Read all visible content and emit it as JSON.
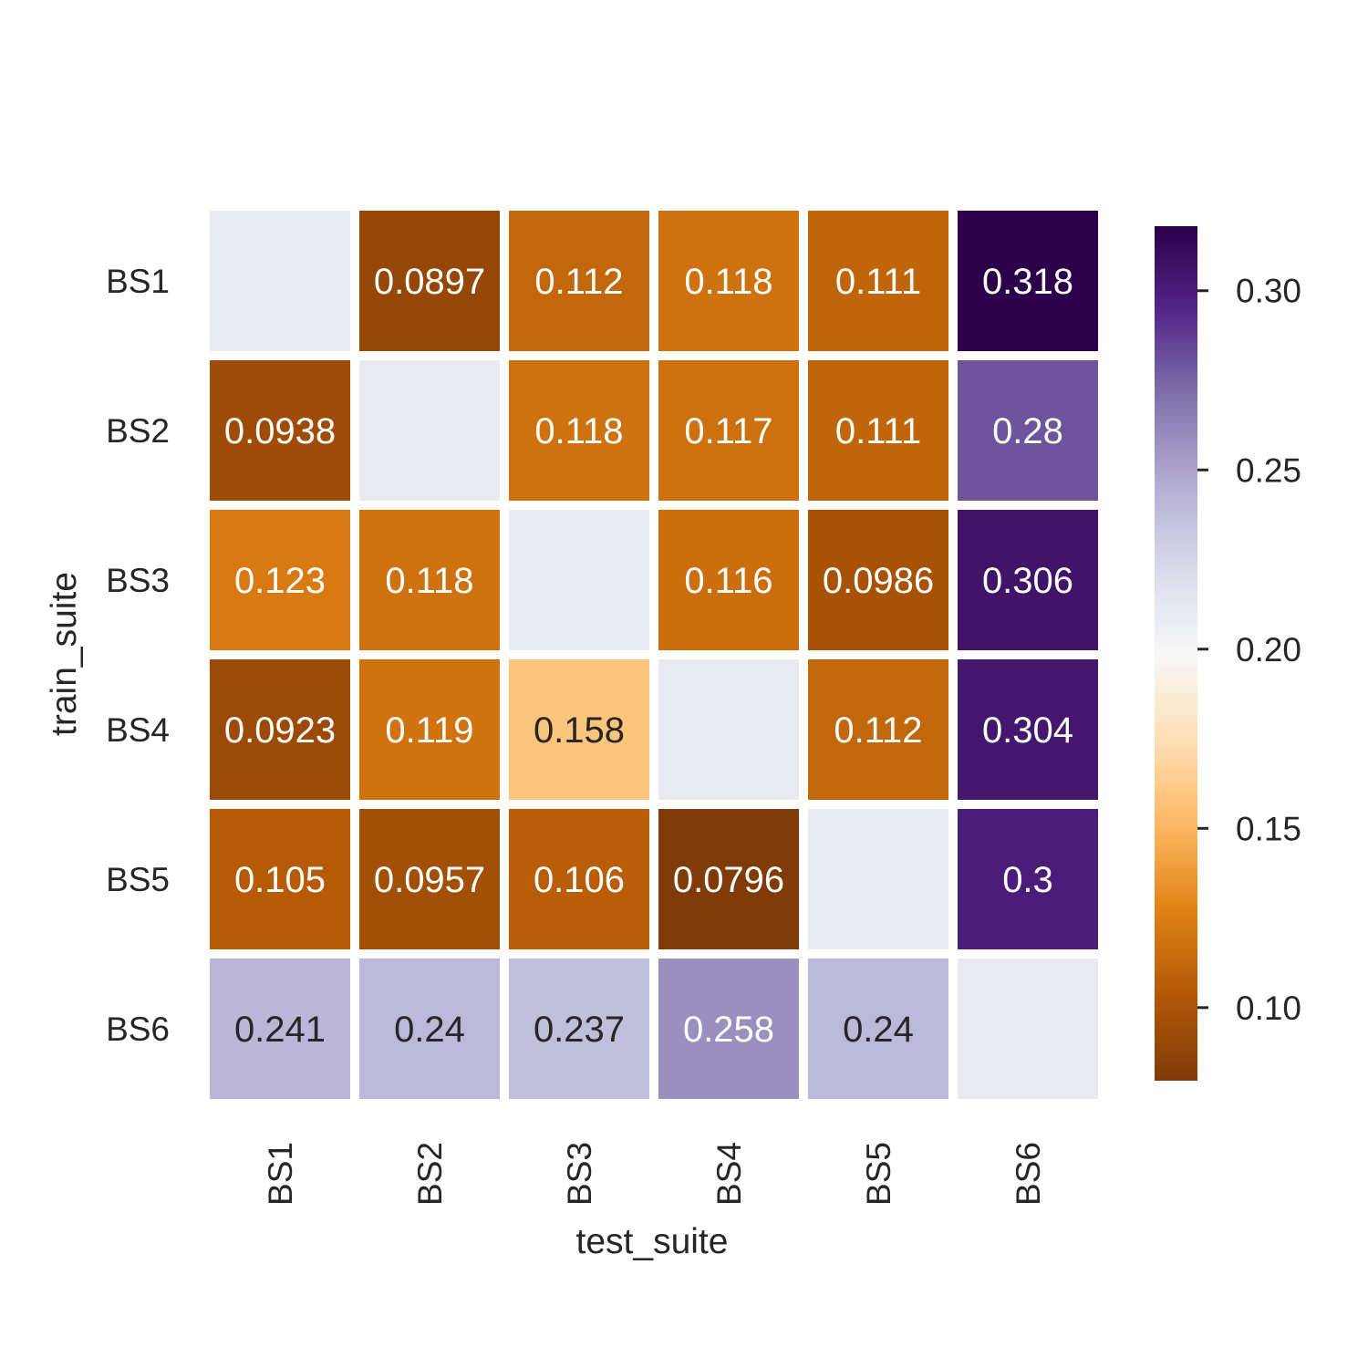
{
  "chart_data": {
    "type": "heatmap",
    "xlabel": "test_suite",
    "ylabel": "train_suite",
    "x_categories": [
      "BS1",
      "BS2",
      "BS3",
      "BS4",
      "BS5",
      "BS6"
    ],
    "y_categories": [
      "BS1",
      "BS2",
      "BS3",
      "BS4",
      "BS5",
      "BS6"
    ],
    "values": [
      [
        null,
        0.0897,
        0.112,
        0.118,
        0.111,
        0.318
      ],
      [
        0.0938,
        null,
        0.118,
        0.117,
        0.111,
        0.28
      ],
      [
        0.123,
        0.118,
        null,
        0.116,
        0.0986,
        0.306
      ],
      [
        0.0923,
        0.119,
        0.158,
        null,
        0.112,
        0.304
      ],
      [
        0.105,
        0.0957,
        0.106,
        0.0796,
        null,
        0.3
      ],
      [
        0.241,
        0.24,
        0.237,
        0.258,
        0.24,
        null
      ]
    ],
    "cell_labels": [
      [
        "",
        "0.0897",
        "0.112",
        "0.118",
        "0.111",
        "0.318"
      ],
      [
        "0.0938",
        "",
        "0.118",
        "0.117",
        "0.111",
        "0.28"
      ],
      [
        "0.123",
        "0.118",
        "",
        "0.116",
        "0.0986",
        "0.306"
      ],
      [
        "0.0923",
        "0.119",
        "0.158",
        "",
        "0.112",
        "0.304"
      ],
      [
        "0.105",
        "0.0957",
        "0.106",
        "0.0796",
        "",
        "0.3"
      ],
      [
        "0.241",
        "0.24",
        "0.237",
        "0.258",
        "0.24",
        ""
      ]
    ],
    "missing_cell_color": "#eaeaf2",
    "colormap": "PuOr",
    "colormap_stops": [
      "#7f3b08",
      "#b35806",
      "#e08214",
      "#fdb863",
      "#fee0b6",
      "#f7f7f7",
      "#d8daeb",
      "#b2abd2",
      "#8073ac",
      "#542788",
      "#2d004b"
    ],
    "vmin": 0.0796,
    "vmax": 0.318,
    "colorbar_ticks": [
      0.1,
      0.15,
      0.2,
      0.25,
      0.3
    ],
    "colorbar_tick_labels": [
      "0.10",
      "0.15",
      "0.20",
      "0.25",
      "0.30"
    ],
    "grid": false,
    "legend": "colorbar-right"
  }
}
